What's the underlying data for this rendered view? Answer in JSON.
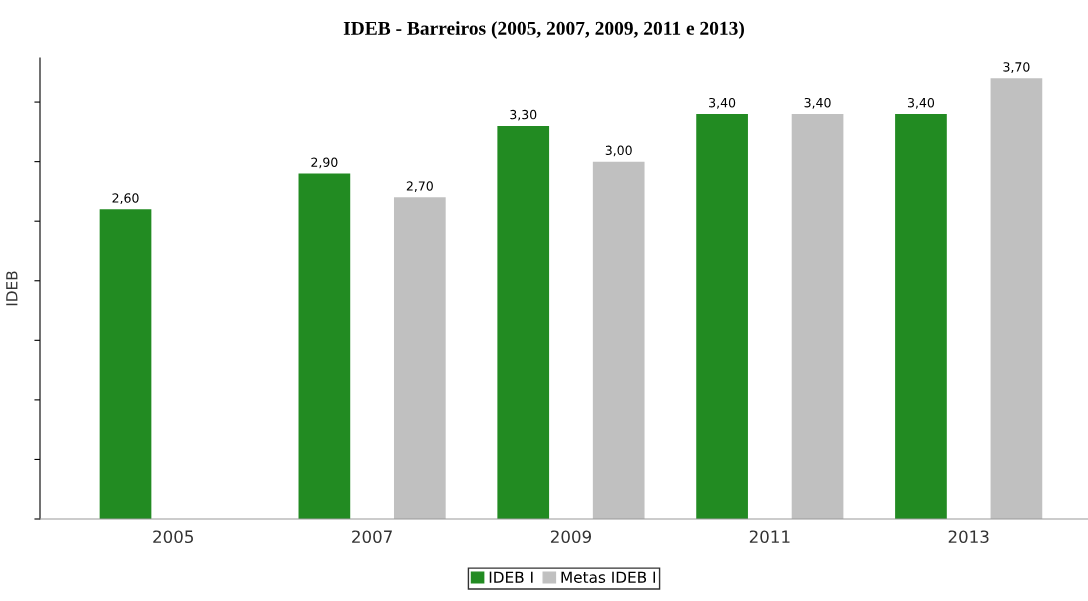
{
  "chart_data": {
    "type": "bar",
    "title": "IDEB - Barreiros (2005, 2007, 2009, 2011 e 2013)",
    "ylabel": "IDEB",
    "categories": [
      "2005",
      "2007",
      "2009",
      "2011",
      "2013"
    ],
    "series": [
      {
        "name": "IDEB I",
        "color": "#228b22",
        "values": [
          2.6,
          2.9,
          3.3,
          3.4,
          3.4
        ],
        "value_labels": [
          "2,60",
          "2,90",
          "3,30",
          "3,40",
          "3,40"
        ]
      },
      {
        "name": "Metas IDEB I",
        "color": "#c0c0c0",
        "values": [
          null,
          2.7,
          3.0,
          3.4,
          3.7
        ],
        "value_labels": [
          null,
          "2,70",
          "3,00",
          "3,40",
          "3,70"
        ]
      }
    ],
    "ylim": [
      0,
      3.87
    ],
    "yticks": [
      {
        "value": 0,
        "label": null
      },
      {
        "value": 0.5,
        "label": null
      },
      {
        "value": 1,
        "label": null
      },
      {
        "value": 1.5,
        "label": null
      },
      {
        "value": 2,
        "label": null
      },
      {
        "value": 2.5,
        "label": null
      },
      {
        "value": 3,
        "label": null
      },
      {
        "value": 3.5,
        "label": null
      }
    ],
    "tick_labels": "x",
    "grid": false,
    "legend": "bottom"
  }
}
